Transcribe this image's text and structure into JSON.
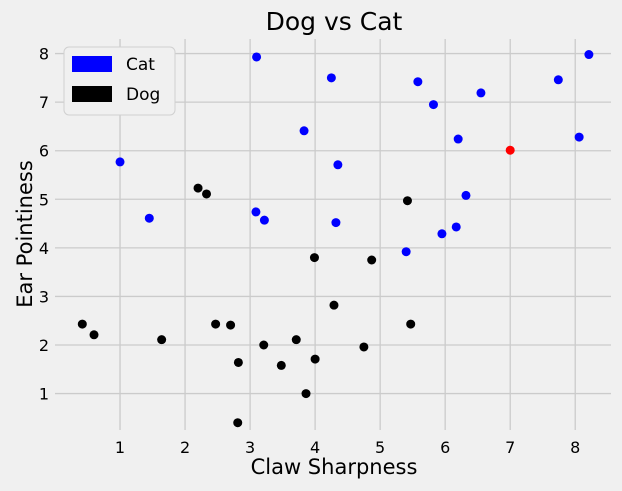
{
  "chart_data": {
    "type": "scatter",
    "title": "Dog vs Cat",
    "xlabel": "Claw Sharpness",
    "ylabel": "Ear Pointiness",
    "xlim": [
      0.0,
      8.55
    ],
    "ylim": [
      0.25,
      8.3
    ],
    "xticks": [
      1,
      2,
      3,
      4,
      5,
      6,
      7,
      8
    ],
    "yticks": [
      1,
      2,
      3,
      4,
      5,
      6,
      7,
      8
    ],
    "grid": true,
    "legend_position": "top-left",
    "series": [
      {
        "name": "Cat",
        "color": "#0000ff",
        "points": [
          [
            1.0,
            5.77
          ],
          [
            1.45,
            4.61
          ],
          [
            3.1,
            7.93
          ],
          [
            3.09,
            4.74
          ],
          [
            3.22,
            4.57
          ],
          [
            4.25,
            7.5
          ],
          [
            3.83,
            6.41
          ],
          [
            4.35,
            5.71
          ],
          [
            4.32,
            4.52
          ],
          [
            5.58,
            7.42
          ],
          [
            5.82,
            6.95
          ],
          [
            5.4,
            3.92
          ],
          [
            5.95,
            4.29
          ],
          [
            6.55,
            7.19
          ],
          [
            6.2,
            6.24
          ],
          [
            6.32,
            5.08
          ],
          [
            6.17,
            4.43
          ],
          [
            7.74,
            7.46
          ],
          [
            8.21,
            7.98
          ],
          [
            8.06,
            6.28
          ]
        ]
      },
      {
        "name": "Dog",
        "color": "#000000",
        "points": [
          [
            0.42,
            2.43
          ],
          [
            0.6,
            2.21
          ],
          [
            1.64,
            2.11
          ],
          [
            2.2,
            5.23
          ],
          [
            2.33,
            5.11
          ],
          [
            2.47,
            2.43
          ],
          [
            2.7,
            2.41
          ],
          [
            2.82,
            1.64
          ],
          [
            3.21,
            2.0
          ],
          [
            2.81,
            0.4
          ],
          [
            3.48,
            1.58
          ],
          [
            3.71,
            2.11
          ],
          [
            3.86,
            1.0
          ],
          [
            4.0,
            1.71
          ],
          [
            3.99,
            3.8
          ],
          [
            4.29,
            2.82
          ],
          [
            4.75,
            1.96
          ],
          [
            4.87,
            3.75
          ],
          [
            5.42,
            4.97
          ],
          [
            5.47,
            2.43
          ]
        ]
      },
      {
        "name": "",
        "color": "#ff0000",
        "points": [
          [
            7.0,
            6.01
          ]
        ]
      }
    ]
  }
}
